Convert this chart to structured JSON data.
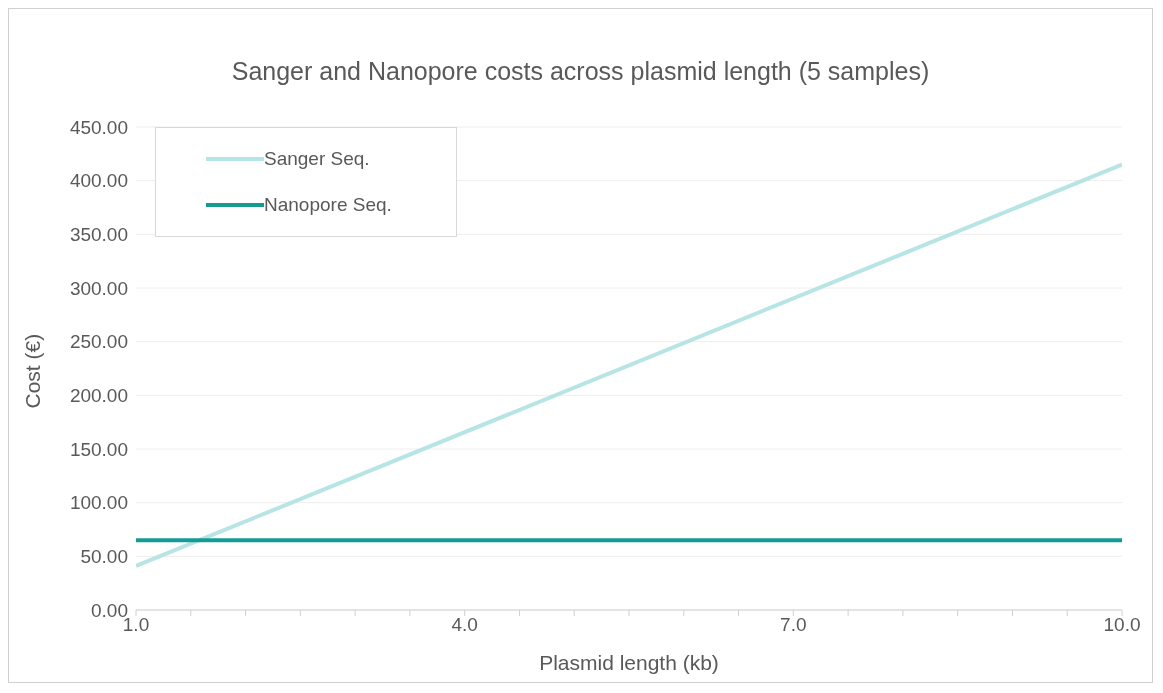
{
  "chart_data": {
    "type": "line",
    "title": "Sanger and Nanopore costs across plasmid length (5 samples)",
    "xlabel": "Plasmid length (kb)",
    "ylabel": "Cost (€)",
    "x": [
      1,
      10
    ],
    "series": [
      {
        "name": "Sanger Seq.",
        "color": "#b7e4e4",
        "values": [
          41,
          415
        ]
      },
      {
        "name": "Nanopore Seq.",
        "color": "#149c94",
        "values": [
          65,
          65
        ]
      }
    ],
    "xlim": [
      1,
      10
    ],
    "xticks": [
      {
        "value": 1,
        "label": "1.0"
      },
      {
        "value": 1.5,
        "label": null
      },
      {
        "value": 2,
        "label": null
      },
      {
        "value": 2.5,
        "label": null
      },
      {
        "value": 3,
        "label": null
      },
      {
        "value": 3.5,
        "label": null
      },
      {
        "value": 4,
        "label": "4.0"
      },
      {
        "value": 4.5,
        "label": null
      },
      {
        "value": 5,
        "label": null
      },
      {
        "value": 5.5,
        "label": null
      },
      {
        "value": 6,
        "label": null
      },
      {
        "value": 6.5,
        "label": null
      },
      {
        "value": 7,
        "label": "7.0"
      },
      {
        "value": 7.5,
        "label": null
      },
      {
        "value": 8,
        "label": null
      },
      {
        "value": 8.5,
        "label": null
      },
      {
        "value": 9,
        "label": null
      },
      {
        "value": 9.5,
        "label": null
      },
      {
        "value": 10,
        "label": "10.0"
      }
    ],
    "ylim": [
      0,
      450
    ],
    "yticks": [
      {
        "value": 0,
        "label": "0.00"
      },
      {
        "value": 50,
        "label": "50.00"
      },
      {
        "value": 100,
        "label": "100.00"
      },
      {
        "value": 150,
        "label": "150.00"
      },
      {
        "value": 200,
        "label": "200.00"
      },
      {
        "value": 250,
        "label": "250.00"
      },
      {
        "value": 300,
        "label": "300.00"
      },
      {
        "value": 350,
        "label": "350.00"
      },
      {
        "value": 400,
        "label": "400.00"
      },
      {
        "value": 450,
        "label": "450.00"
      }
    ],
    "grid": "y",
    "legend": "top left",
    "marker": "none",
    "line_style": "solid"
  }
}
